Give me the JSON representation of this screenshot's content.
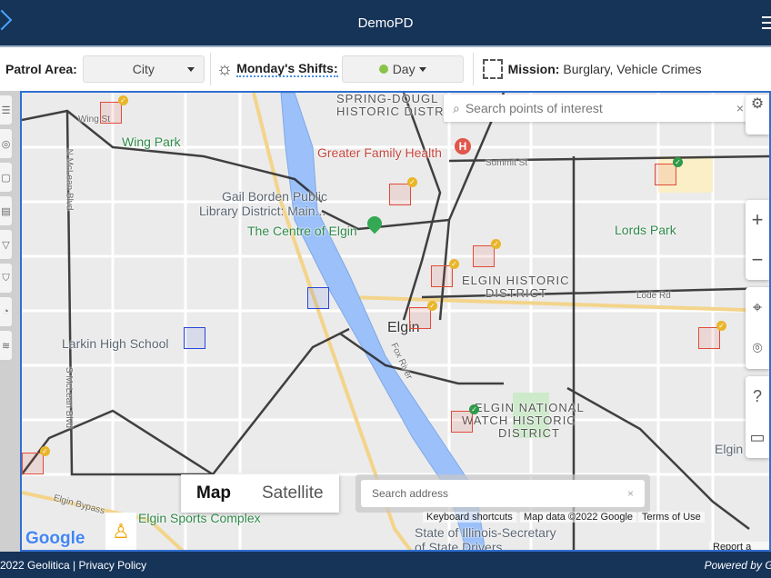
{
  "header": {
    "title": "DemoPD",
    "back_icon": "chevron-icon",
    "menu_icon": "hamburger-icon"
  },
  "filters": {
    "patrol_area_label": "Patrol Area:",
    "patrol_area_value": "City",
    "shifts_label": "Monday's Shifts:",
    "shift_value": "Day",
    "shift_color": "#8bc34a",
    "mission_label": "Mission:",
    "mission_value": "Burglary, Vehicle Crimes"
  },
  "map": {
    "search_poi_placeholder": "Search points of interest",
    "search_address_placeholder": "Search address",
    "map_type": [
      "Map",
      "Satellite"
    ],
    "attribution": [
      "Keyboard shortcuts",
      "Map data ©2022 Google",
      "Terms of Use",
      "Report a map"
    ],
    "google": "Google",
    "zone_color": "#e14b3a",
    "patrol_color": "#2a47d6",
    "labels": [
      "SPRING-DOUGL",
      "HISTORIC DISTR",
      "Wing Park",
      "Greater Family Health",
      "Summit St",
      "Gail Borden Public",
      "Library District: Main...",
      "The Centre of Elgin",
      "Lords Park",
      "ELGIN HISTORIC",
      "DISTRICT",
      "Elgin",
      "Larkin High School",
      "ELGIN NATIONAL",
      "WATCH HISTORIC",
      "DISTRICT",
      "Elgin",
      "Elgin Sports Complex",
      "State of Illinois-Secretary",
      "of State Drivers...",
      "Lode Rd",
      "Wing St",
      "N McLean Blvd",
      "S McLean Blvd",
      "Fox River",
      "Elgin Bypass"
    ]
  },
  "footer": {
    "copyright": "2022 Geolitica | Privacy Policy",
    "powered": "Powered by Geolitica"
  }
}
